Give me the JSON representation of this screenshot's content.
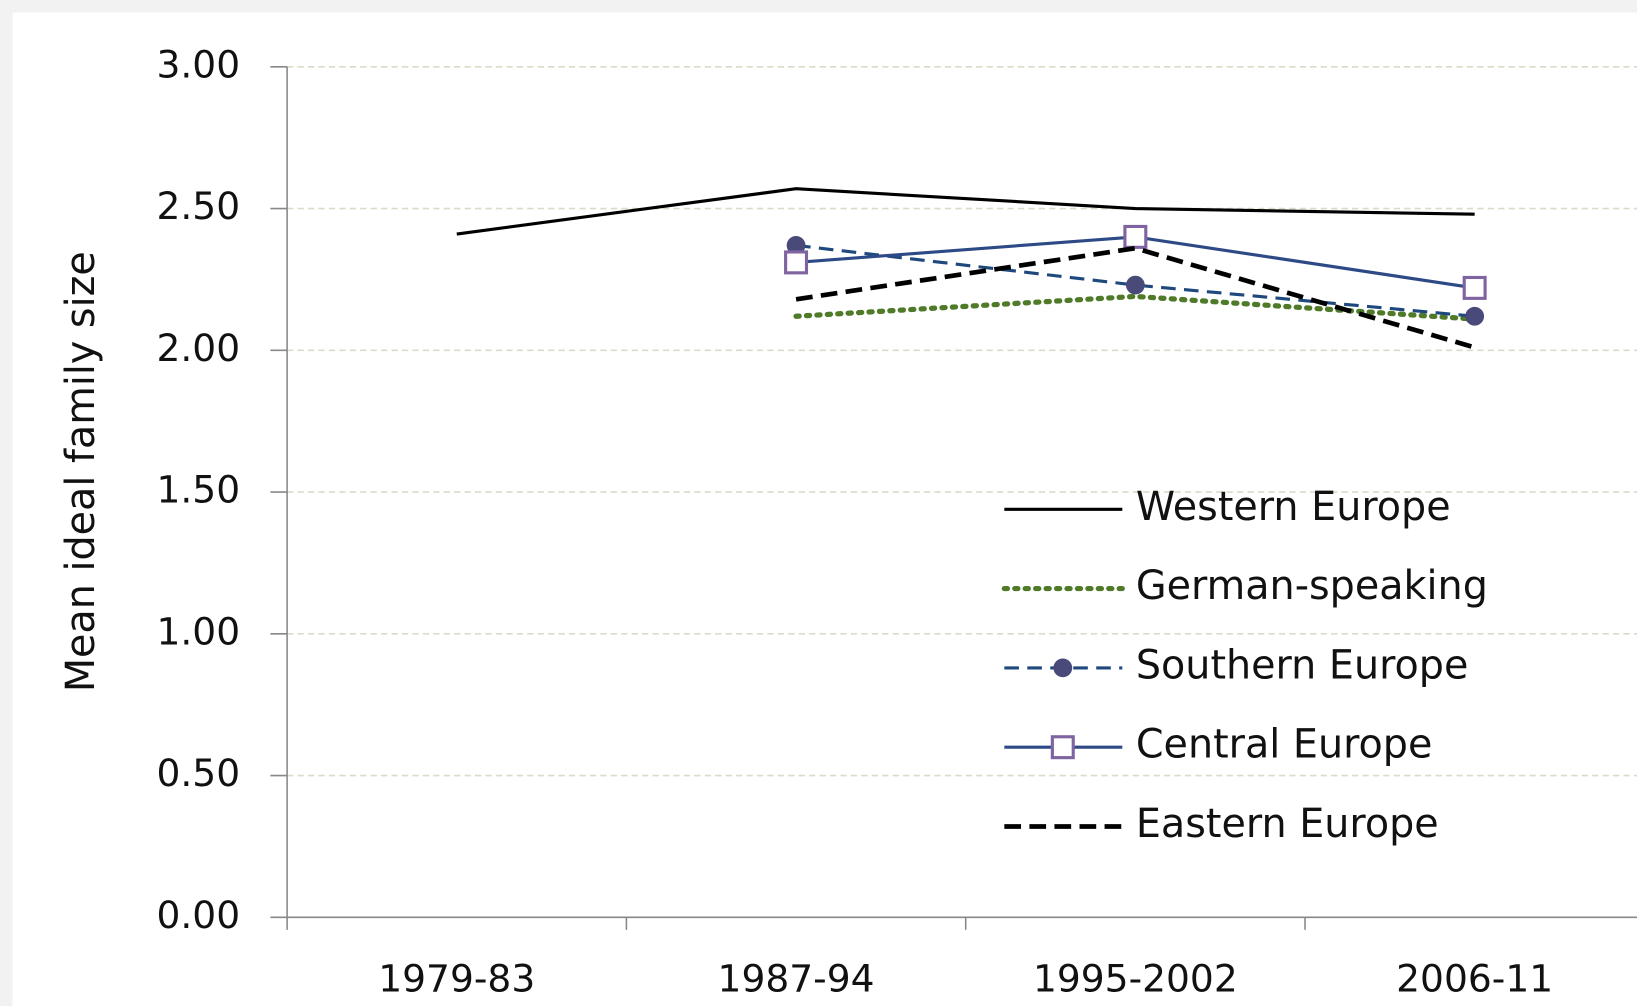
{
  "chart_data": {
    "type": "line",
    "y_label": "Mean ideal family size",
    "categories": [
      "1979-83",
      "1987-94",
      "1995-2002",
      "2006-11"
    ],
    "ylim": [
      0,
      3
    ],
    "yticks": [
      {
        "value": 0,
        "label": "0.00"
      },
      {
        "value": 0.5,
        "label": "0.50"
      },
      {
        "value": 1,
        "label": "1.00"
      },
      {
        "value": 1.5,
        "label": "1.50"
      },
      {
        "value": 2,
        "label": "2.00"
      },
      {
        "value": 2.5,
        "label": "2.50"
      },
      {
        "value": 3,
        "label": "3.00"
      }
    ],
    "grid": true,
    "legend": "lower right",
    "series": [
      {
        "name": "Western Europe",
        "color": "#000000",
        "dash": "solid",
        "values": [
          2.41,
          2.57,
          2.5,
          2.48
        ]
      },
      {
        "name": "German-speaking",
        "color": "#4f7a28",
        "dash": "dotted",
        "values": [
          null,
          2.12,
          2.19,
          2.11
        ]
      },
      {
        "name": "Southern Europe",
        "color": "#1f497d",
        "dash": "dashed",
        "marker": "circle",
        "marker_color": "#4a4a7a",
        "values": [
          null,
          2.37,
          2.23,
          2.12
        ]
      },
      {
        "name": "Central Europe",
        "color": "#2e4a86",
        "dash": "solid",
        "marker": "square",
        "marker_color": "#8064a2",
        "values": [
          null,
          2.31,
          2.4,
          2.22
        ]
      },
      {
        "name": "Eastern Europe",
        "color": "#000000",
        "dash": "bold-dashed",
        "values": [
          null,
          2.18,
          2.36,
          2.01
        ]
      }
    ]
  }
}
